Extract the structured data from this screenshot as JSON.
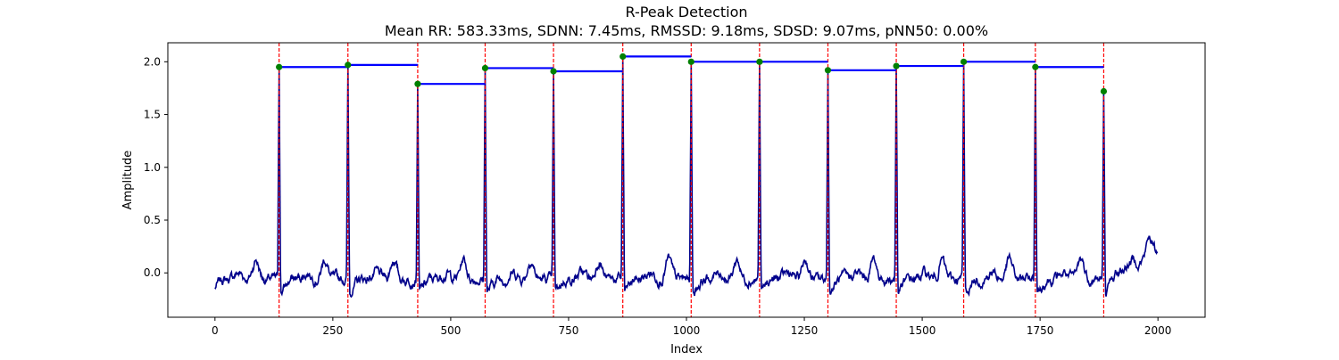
{
  "chart_data": {
    "type": "line",
    "title": "R-Peak Detection",
    "subtitle": "Mean RR: 583.33ms, SDNN: 7.45ms, RMSSD: 9.18ms, SDSD: 9.07ms, pNN50: 0.00%",
    "xlabel": "Index",
    "ylabel": "Amplitude",
    "xlim": [
      -100,
      2100
    ],
    "ylim": [
      -0.42,
      2.18
    ],
    "x_ticks": [
      0,
      250,
      500,
      750,
      1000,
      1250,
      1500,
      1750,
      2000
    ],
    "y_ticks": [
      0.0,
      0.5,
      1.0,
      1.5,
      2.0
    ],
    "x_tick_labels": [
      "0",
      "250",
      "500",
      "750",
      "1000",
      "1250",
      "1500",
      "1750",
      "2000"
    ],
    "y_tick_labels": [
      "0.0",
      "0.5",
      "1.0",
      "1.5",
      "2.0"
    ],
    "grid": false,
    "signal_length": 2000,
    "r_peaks": [
      {
        "x": 136,
        "y": 1.95
      },
      {
        "x": 282,
        "y": 1.97
      },
      {
        "x": 430,
        "y": 1.79
      },
      {
        "x": 573,
        "y": 1.94
      },
      {
        "x": 718,
        "y": 1.91
      },
      {
        "x": 865,
        "y": 2.05
      },
      {
        "x": 1010,
        "y": 2.0
      },
      {
        "x": 1155,
        "y": 2.0
      },
      {
        "x": 1300,
        "y": 1.92
      },
      {
        "x": 1445,
        "y": 1.96
      },
      {
        "x": 1588,
        "y": 2.0
      },
      {
        "x": 1740,
        "y": 1.95
      },
      {
        "x": 1885,
        "y": 1.72
      }
    ],
    "colors": {
      "signal": "#00008b",
      "peak_lines": "#ff0000",
      "rr_segments": "#0000ff",
      "peak_markers": "#008000"
    }
  }
}
